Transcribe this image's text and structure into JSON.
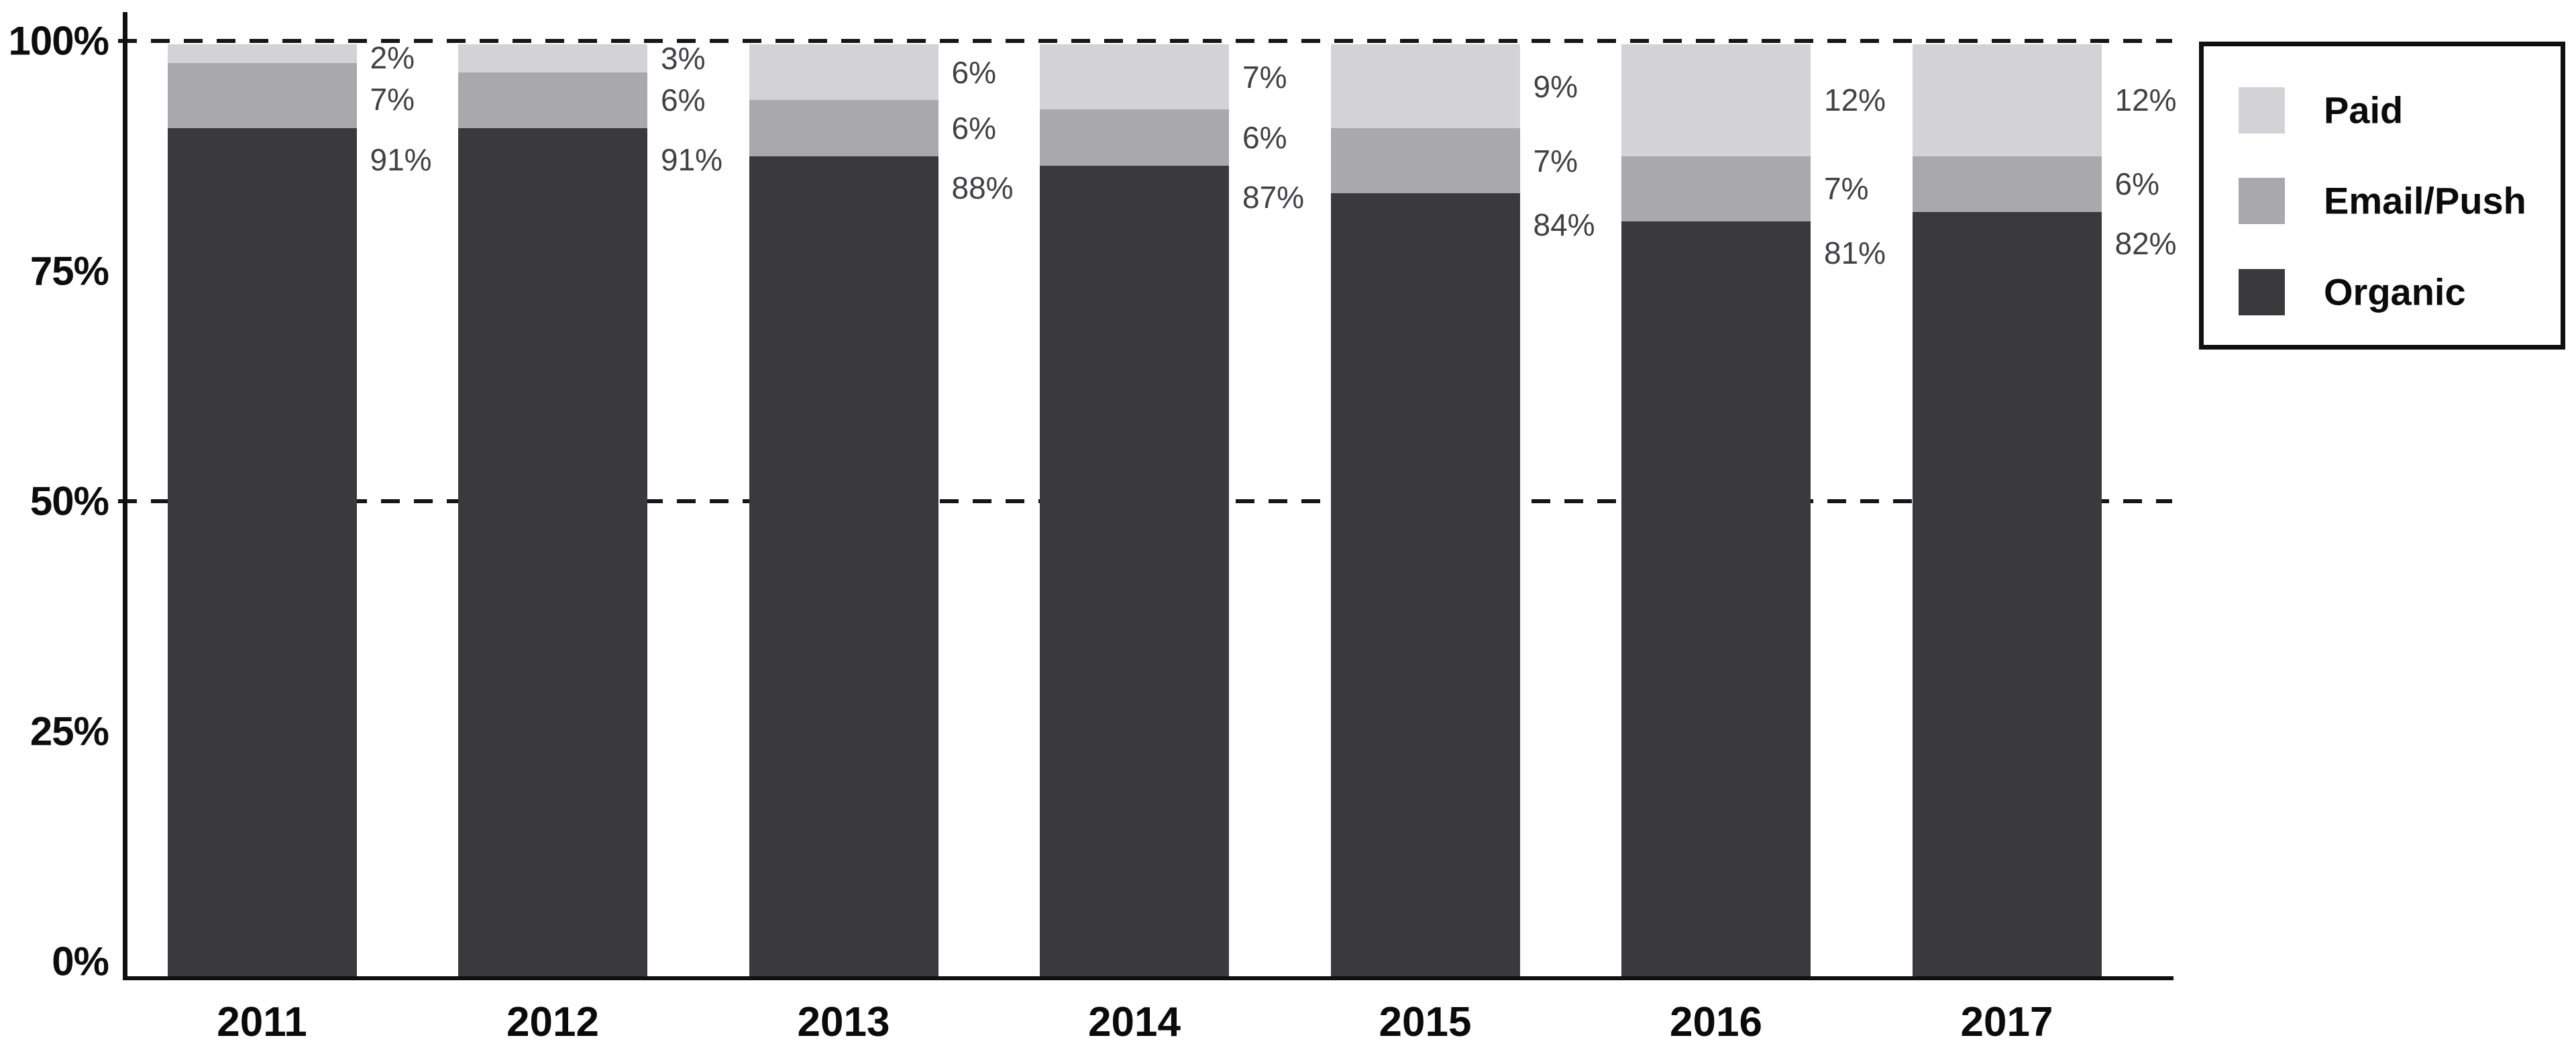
{
  "chart_data": {
    "type": "bar",
    "stacked": true,
    "categories": [
      "2011",
      "2012",
      "2013",
      "2014",
      "2015",
      "2016",
      "2017"
    ],
    "series": [
      {
        "name": "Paid",
        "color": "#d3d3d5",
        "values": [
          2,
          3,
          6,
          7,
          9,
          12,
          12
        ]
      },
      {
        "name": "Email/Push",
        "color": "#a9a9ab",
        "values": [
          7,
          6,
          6,
          6,
          7,
          7,
          6
        ]
      },
      {
        "name": "Organic",
        "color": "#3a3a3c",
        "values": [
          91,
          91,
          88,
          87,
          84,
          81,
          82
        ]
      }
    ],
    "value_labels": [
      [
        "2%",
        "7%",
        "91%"
      ],
      [
        "3%",
        "6%",
        "91%"
      ],
      [
        "6%",
        "6%",
        "88%"
      ],
      [
        "7%",
        "6%",
        "87%"
      ],
      [
        "9%",
        "7%",
        "84%"
      ],
      [
        "12%",
        "7%",
        "81%"
      ],
      [
        "12%",
        "6%",
        "82%"
      ]
    ],
    "y_axis": {
      "ticks": [
        "100%",
        "75%",
        "50%",
        "25%",
        "0%"
      ],
      "range": [
        0,
        100
      ],
      "dashed_gridlines_at_percent": [
        100,
        50
      ]
    },
    "legend": {
      "position": "top-right",
      "items": [
        {
          "label": "Paid",
          "color": "#d3d3d5"
        },
        {
          "label": "Email/Push",
          "color": "#a9a9ab"
        },
        {
          "label": "Organic",
          "color": "#3a3a3c"
        }
      ]
    },
    "colors": {
      "axis": "#101010",
      "axis_text": "#0d0d0e",
      "value_text": "#414144",
      "background": "#ffffff"
    }
  }
}
